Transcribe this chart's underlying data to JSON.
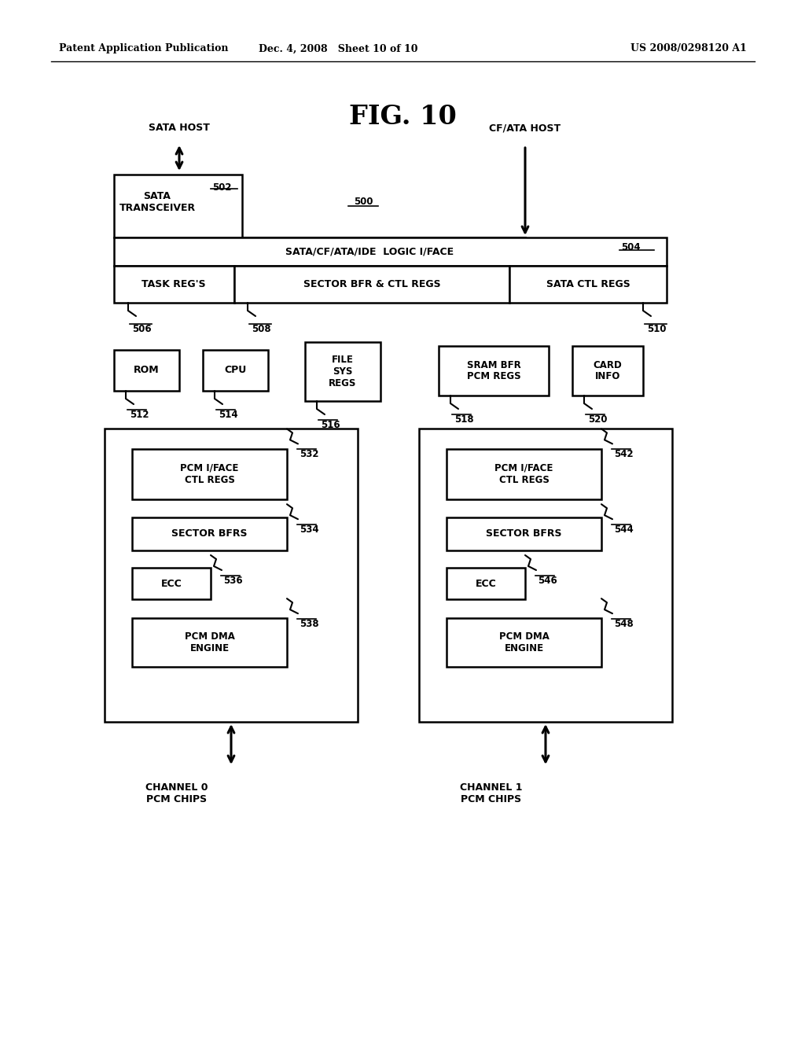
{
  "fig_width": 10.24,
  "fig_height": 13.2,
  "dpi": 100,
  "header_left": "Patent Application Publication",
  "header_mid": "Dec. 4, 2008   Sheet 10 of 10",
  "header_right": "US 2008/0298120 A1",
  "fig_label": "FIG. 10",
  "sata_host_label": "SATA HOST",
  "cf_ata_host_label": "CF/ATA HOST",
  "ref500_label": "500",
  "background": "#ffffff"
}
